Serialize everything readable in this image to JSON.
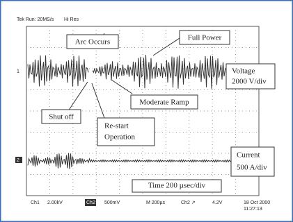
{
  "header": {
    "status": "Tek Run: 20MS/s",
    "mode": "Hi Res"
  },
  "annotations": {
    "arc": "Arc Occurs",
    "full_power": "Full Power",
    "voltage": [
      "Voltage",
      "2000 V/div"
    ],
    "ramp": "Moderate Ramp",
    "shut_off": "Shut off",
    "restart": [
      "Re-start",
      "Operation"
    ],
    "current": [
      "Current",
      "500 A/div"
    ],
    "time": "Time 200 µsec/div"
  },
  "channels": {
    "ch1_marker": "1",
    "ch2_marker": "2"
  },
  "footer": {
    "ch1": "Ch1",
    "ch1_scale": "2.00kV",
    "ch2": "Ch2",
    "ch2_scale": "500mV",
    "time": "M 200µs",
    "trigger": "Ch2 ↗",
    "level": "4.2V",
    "date": "18 Oct 2000",
    "clock": "11:27:13"
  }
}
